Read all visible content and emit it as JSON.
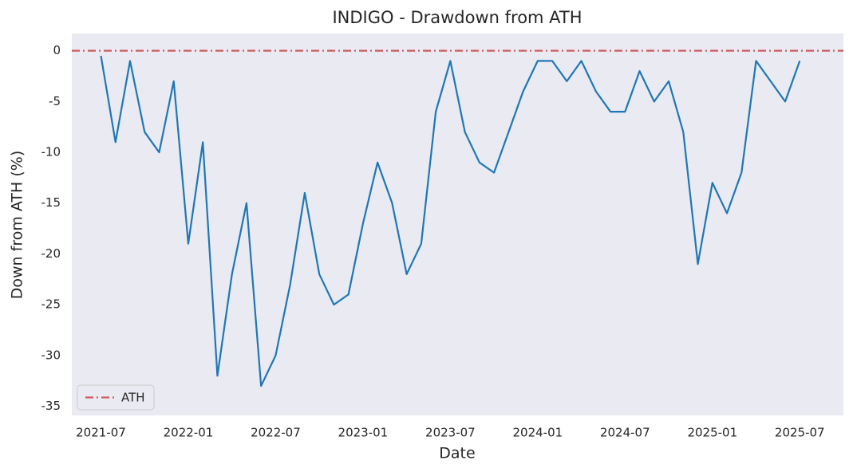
{
  "chart_data": {
    "type": "line",
    "title": "INDIGO - Drawdown from ATH",
    "x_label": "Date",
    "y_label": "Down from ATH (%)",
    "x": [
      "2021-07",
      "2021-08",
      "2021-09",
      "2021-10",
      "2021-11",
      "2021-12",
      "2022-01",
      "2022-02",
      "2022-03",
      "2022-04",
      "2022-05",
      "2022-06",
      "2022-07",
      "2022-08",
      "2022-09",
      "2022-10",
      "2022-11",
      "2022-12",
      "2023-01",
      "2023-02",
      "2023-03",
      "2023-04",
      "2023-05",
      "2023-06",
      "2023-07",
      "2023-08",
      "2023-09",
      "2023-10",
      "2023-11",
      "2023-12",
      "2024-01",
      "2024-02",
      "2024-03",
      "2024-04",
      "2024-05",
      "2024-06",
      "2024-07",
      "2024-08",
      "2024-09",
      "2024-10",
      "2024-11",
      "2024-12",
      "2025-01",
      "2025-02",
      "2025-03",
      "2025-04",
      "2025-05",
      "2025-06",
      "2025-07"
    ],
    "series": [
      {
        "color": "#1f77b4",
        "values": [
          -0.5,
          -9,
          -1,
          -8,
          -10,
          -3,
          -19,
          -9,
          -32,
          -22,
          -15,
          -33,
          -30,
          -23,
          -14,
          -22,
          -25,
          -24,
          -17,
          -11,
          -15,
          -22,
          -19,
          -6,
          -1,
          -8,
          -11,
          -12,
          -8,
          -4,
          -1,
          -1,
          -3,
          -1,
          -4,
          -6,
          -6,
          -2,
          -5,
          -3,
          -8,
          -21,
          -13,
          -16,
          -12,
          -1,
          -3,
          -5,
          -1
        ]
      }
    ],
    "reference_line": {
      "name": "ATH",
      "value": 0,
      "color": "#cd5c5c"
    },
    "xlim": [
      "2021-05",
      "2025-10"
    ],
    "xticks": [
      "2021-07",
      "2022-01",
      "2022-07",
      "2023-01",
      "2023-07",
      "2024-01",
      "2024-07",
      "2025-01",
      "2025-07"
    ],
    "ylim": [
      -35.9,
      1.7
    ],
    "yticks": [
      0,
      -5,
      -10,
      -15,
      -20,
      -25,
      -30,
      -35
    ],
    "grid": false,
    "legend_position": "lower left"
  }
}
